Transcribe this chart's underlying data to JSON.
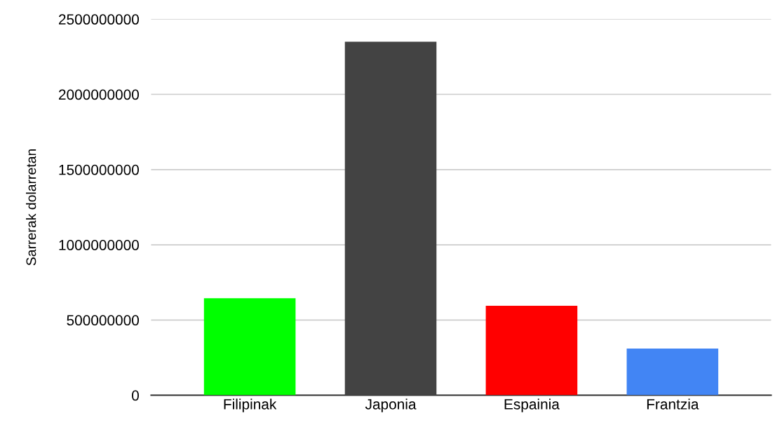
{
  "chart_data": {
    "type": "bar",
    "ylabel": "Sarrerak dolarretan",
    "categories": [
      "Filipinak",
      "Japonia",
      "Espainia",
      "Frantzia"
    ],
    "values": [
      645000000,
      2350000000,
      595000000,
      310000000
    ],
    "colors": [
      "#00ff00",
      "#434343",
      "#ff0000",
      "#4285f4"
    ],
    "ylim": [
      0,
      2500000000
    ],
    "yticks": [
      0,
      500000000,
      1000000000,
      1500000000,
      2000000000,
      2500000000
    ],
    "grid": "y",
    "legend": false
  }
}
